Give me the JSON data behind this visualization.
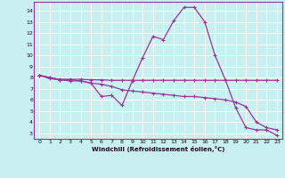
{
  "xlabel": "Windchill (Refroidissement éolien,°C)",
  "bg_color": "#c8f0f0",
  "grid_color": "#ffffff",
  "line_color": "#993399",
  "xlim": [
    -0.5,
    23.5
  ],
  "ylim": [
    2.5,
    14.8
  ],
  "xtick_vals": [
    0,
    1,
    2,
    3,
    4,
    5,
    6,
    7,
    8,
    9,
    10,
    11,
    12,
    13,
    14,
    15,
    16,
    17,
    18,
    19,
    20,
    21,
    22,
    23
  ],
  "ytick_vals": [
    3,
    4,
    5,
    6,
    7,
    8,
    9,
    10,
    11,
    12,
    13,
    14
  ],
  "line1_x": [
    0,
    1,
    2,
    3,
    4,
    5,
    6,
    7,
    8,
    9,
    10,
    11,
    12,
    13,
    14,
    15,
    16,
    17,
    18,
    19,
    20,
    21,
    22,
    23
  ],
  "line1_y": [
    8.2,
    8.0,
    7.8,
    7.8,
    7.7,
    7.5,
    6.3,
    6.4,
    5.5,
    7.7,
    9.8,
    11.7,
    11.4,
    13.1,
    14.3,
    14.3,
    13.0,
    10.0,
    7.8,
    5.3,
    3.5,
    3.3,
    3.3,
    2.8
  ],
  "line2_x": [
    0,
    1,
    2,
    3,
    4,
    5,
    6,
    7,
    8,
    9,
    10,
    11,
    12,
    13,
    14,
    15,
    16,
    17,
    18,
    19,
    20,
    21,
    22,
    23
  ],
  "line2_y": [
    8.2,
    7.9,
    7.8,
    7.7,
    7.7,
    7.5,
    7.4,
    7.2,
    6.9,
    6.8,
    6.7,
    6.6,
    6.5,
    6.4,
    6.3,
    6.3,
    6.2,
    6.1,
    6.0,
    5.8,
    5.4,
    4.0,
    3.5,
    3.3
  ],
  "line3_x": [
    0,
    1,
    2,
    3,
    4,
    5,
    6,
    7,
    8,
    9,
    10,
    11,
    12,
    13,
    14,
    15,
    16,
    17,
    18,
    19,
    20,
    21,
    22,
    23
  ],
  "line3_y": [
    8.2,
    8.0,
    7.85,
    7.85,
    7.85,
    7.8,
    7.8,
    7.75,
    7.75,
    7.75,
    7.75,
    7.75,
    7.75,
    7.75,
    7.75,
    7.75,
    7.75,
    7.75,
    7.75,
    7.75,
    7.75,
    7.75,
    7.75,
    7.75
  ]
}
